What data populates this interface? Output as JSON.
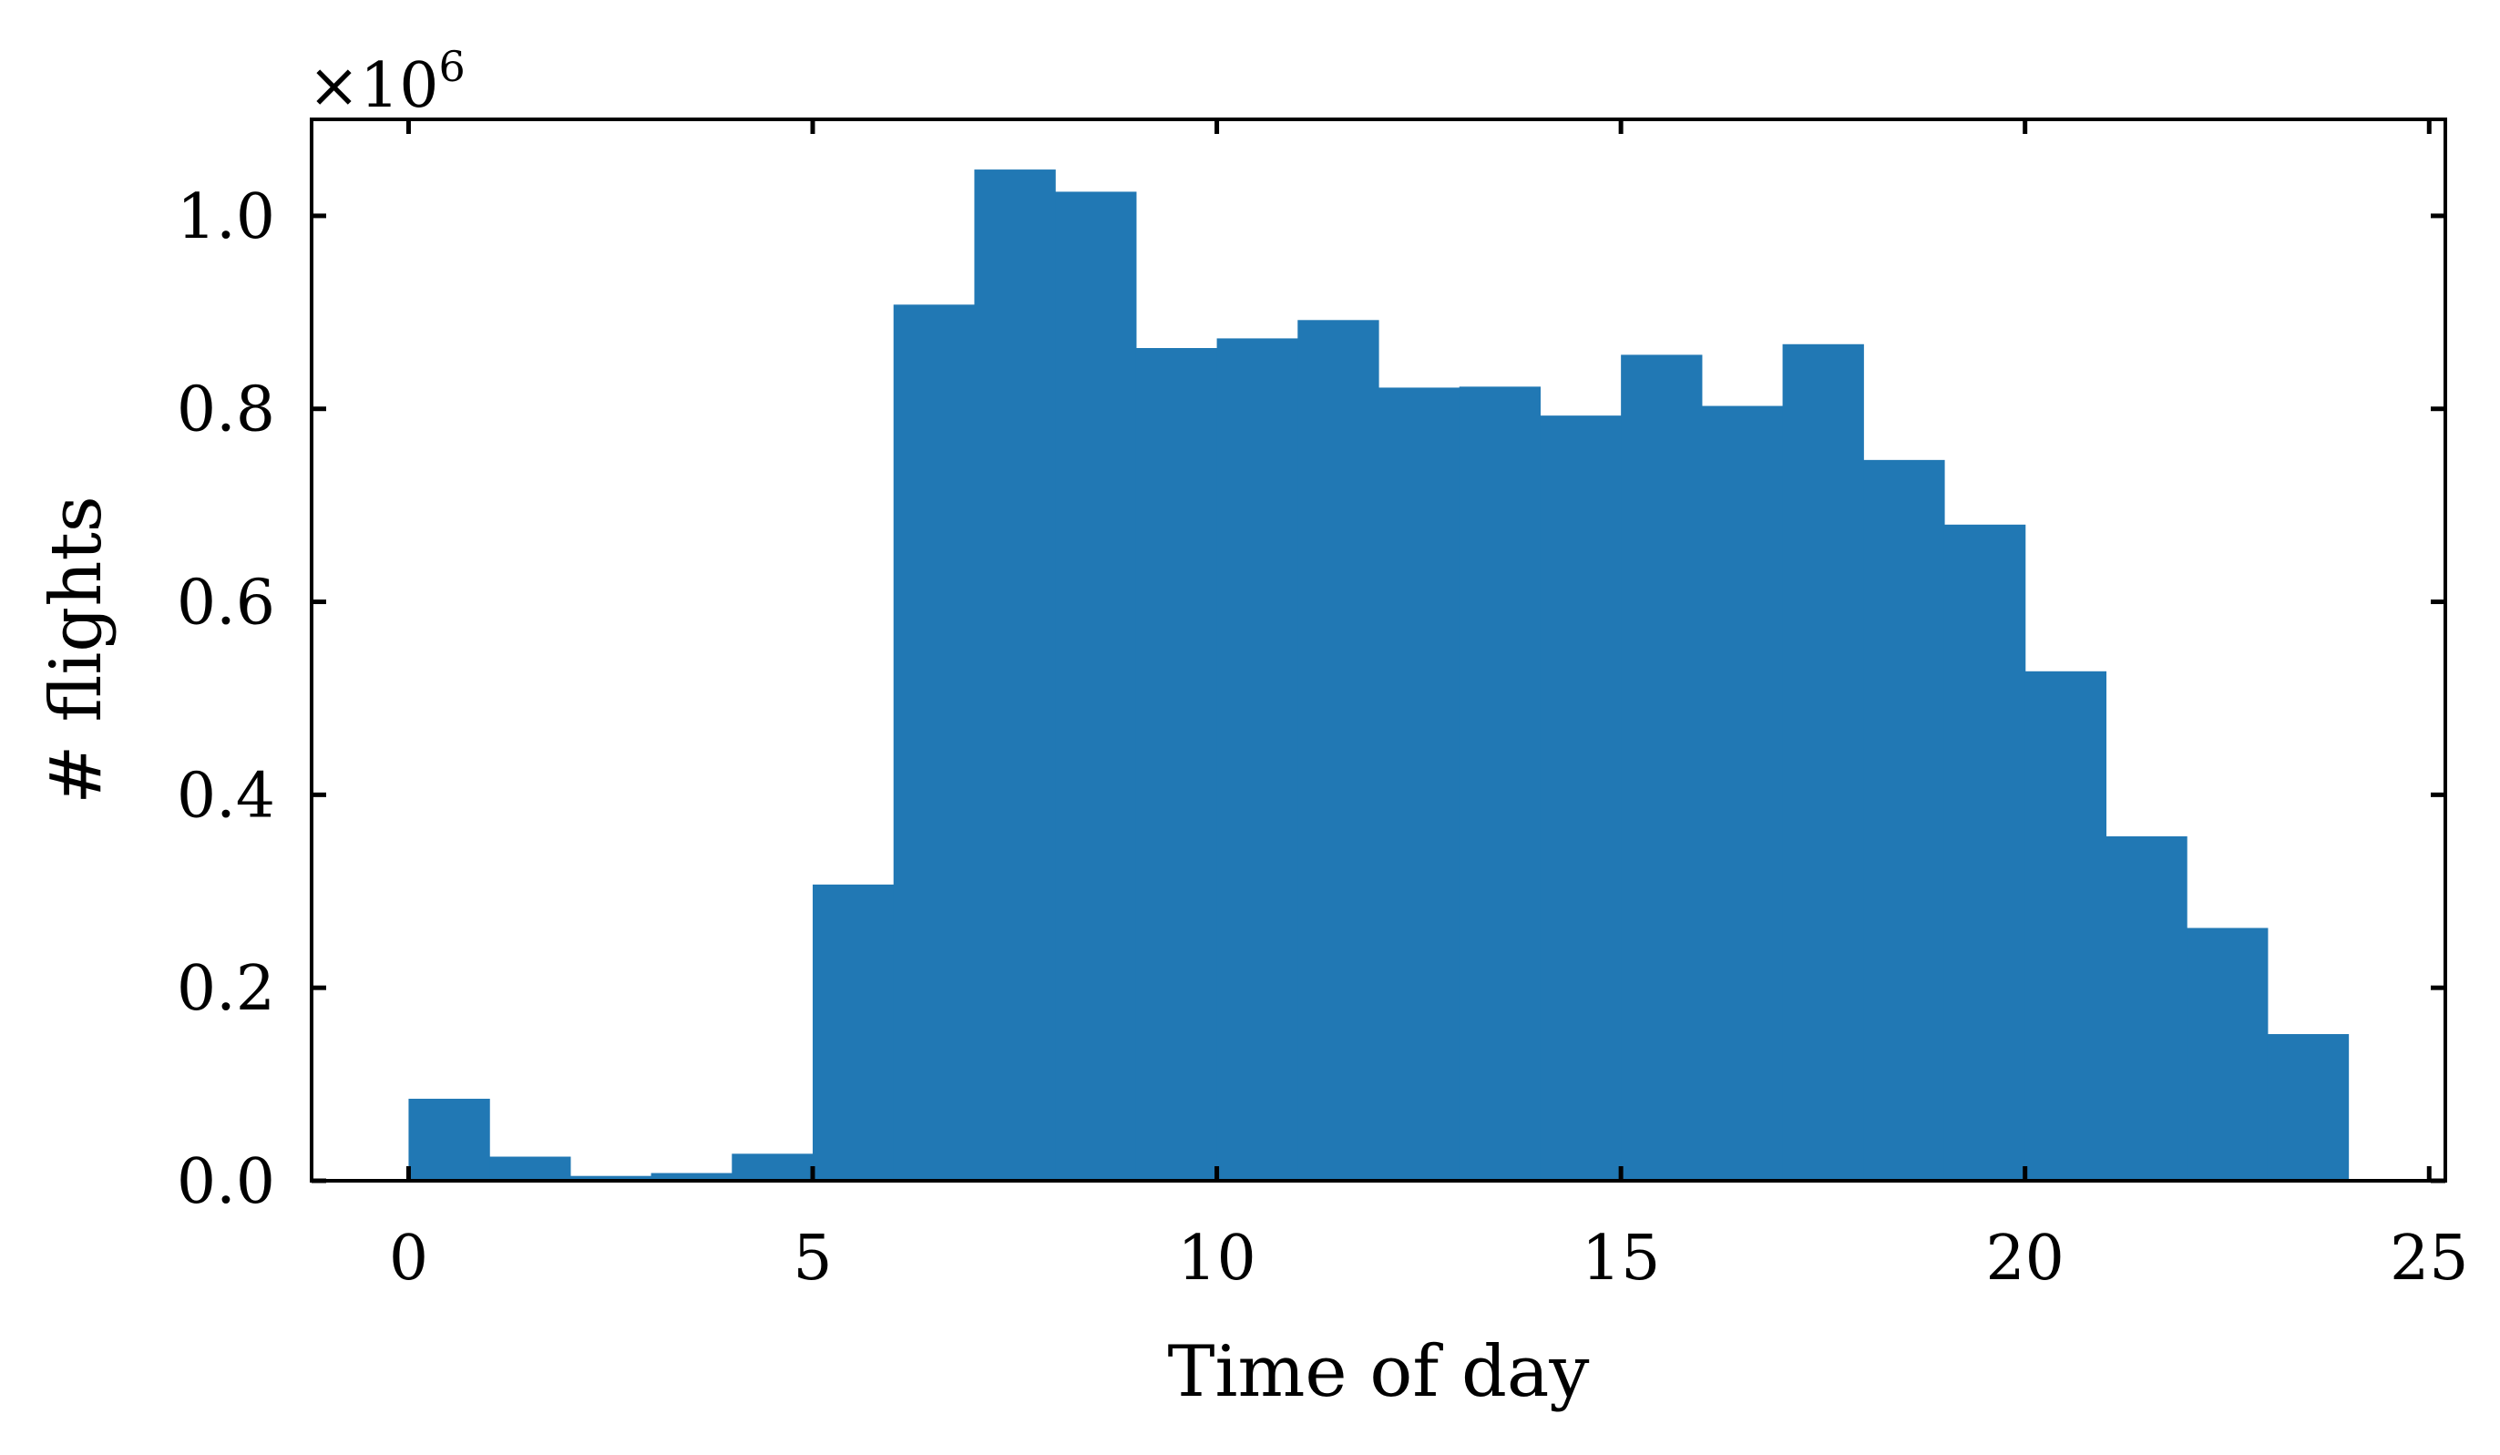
{
  "chart_data": {
    "type": "bar",
    "title": "",
    "xlabel": "Time of day",
    "ylabel": "# flights",
    "y_multiplier_label": "×10",
    "y_multiplier_exponent": "6",
    "bin_width": 1,
    "bin_edges": [
      0,
      1,
      2,
      3,
      4,
      5,
      6,
      7,
      8,
      9,
      10,
      11,
      12,
      13,
      14,
      15,
      16,
      17,
      18,
      19,
      20,
      21,
      22,
      23,
      24
    ],
    "values": [
      0.085,
      0.025,
      0.005,
      0.008,
      0.028,
      0.307,
      0.908,
      1.048,
      1.025,
      0.863,
      0.873,
      0.892,
      0.822,
      0.823,
      0.793,
      0.856,
      0.803,
      0.867,
      0.747,
      0.68,
      0.528,
      0.357,
      0.262,
      0.152
    ],
    "xlim": [
      -1.2,
      25.2
    ],
    "ylim": [
      0,
      1.1
    ],
    "xticks": [
      "0",
      "5",
      "10",
      "15",
      "20",
      "25"
    ],
    "yticks": [
      "0.0",
      "0.2",
      "0.4",
      "0.6",
      "0.8",
      "1.0"
    ],
    "bar_color": "#2178b4",
    "grid": false,
    "legend": false
  }
}
